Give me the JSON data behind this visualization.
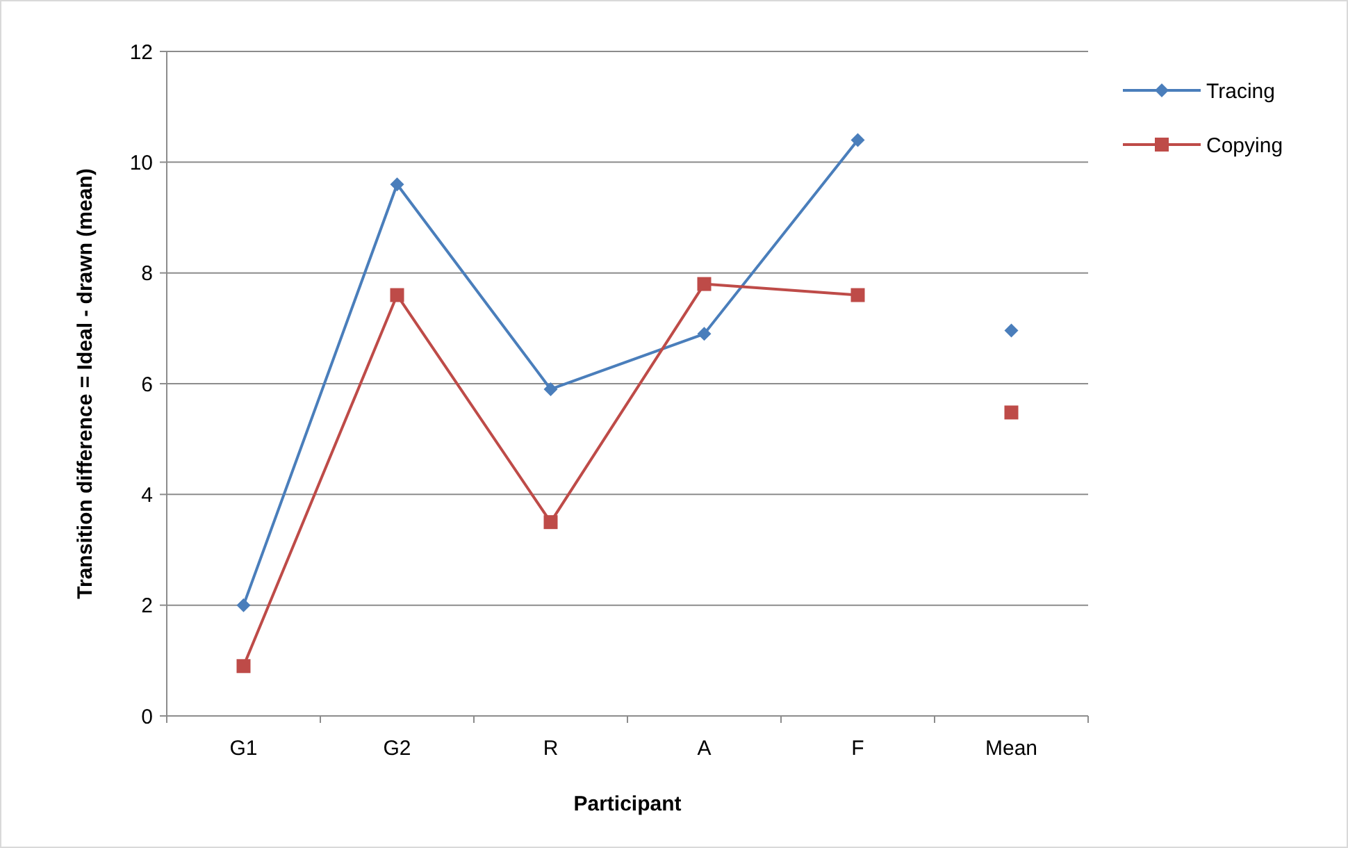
{
  "chart_data": {
    "type": "line",
    "xlabel": "Participant",
    "ylabel": "Transition difference = Ideal - drawn (mean)",
    "categories": [
      "G1",
      "G2",
      "R",
      "A",
      "F",
      "Mean"
    ],
    "series": [
      {
        "name": "Tracing",
        "color": "#4a7ebb",
        "marker": "diamond",
        "values": [
          2.0,
          9.6,
          5.9,
          6.9,
          10.4,
          null
        ]
      },
      {
        "name": "Copying",
        "color": "#be4b48",
        "marker": "square",
        "values": [
          0.9,
          7.6,
          3.5,
          7.8,
          7.6,
          null
        ]
      },
      {
        "type": "scatter",
        "color": "#4a7ebb",
        "marker": "diamond",
        "values": [
          null,
          null,
          null,
          null,
          null,
          6.96
        ]
      },
      {
        "type": "scatter",
        "color": "#be4b48",
        "marker": "square",
        "values": [
          null,
          null,
          null,
          null,
          null,
          5.48
        ]
      }
    ],
    "ylim": [
      0,
      12
    ],
    "yticks": [
      0,
      2,
      4,
      6,
      8,
      10,
      12
    ],
    "grid": "y",
    "legend": "top right"
  }
}
